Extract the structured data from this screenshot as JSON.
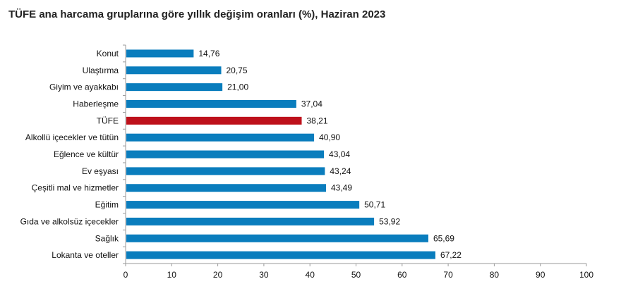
{
  "chart_data": {
    "type": "bar",
    "orientation": "horizontal",
    "title": "TÜFE ana harcama gruplarına göre yıllık değişim oranları (%), Haziran 2023",
    "categories": [
      "Konut",
      "Ulaştırma",
      "Giyim ve ayakkabı",
      "Haberleşme",
      "TÜFE",
      "Alkollü içecekler ve tütün",
      "Eğlence ve kültür",
      "Ev eşyası",
      "Çeşitli mal ve hizmetler",
      "Eğitim",
      "Gıda ve alkolsüz içecekler",
      "Sağlık",
      "Lokanta ve oteller"
    ],
    "values": [
      14.76,
      20.75,
      21.0,
      37.04,
      38.21,
      40.9,
      43.04,
      43.24,
      43.49,
      50.71,
      53.92,
      65.69,
      67.22
    ],
    "data_labels": [
      "14,76",
      "20,75",
      "21,00",
      "37,04",
      "38,21",
      "40,90",
      "43,04",
      "43,24",
      "43,49",
      "50,71",
      "53,92",
      "65,69",
      "67,22"
    ],
    "highlight": "TÜFE",
    "xlim": [
      0,
      100
    ],
    "xticks": [
      "0",
      "10",
      "20",
      "30",
      "40",
      "50",
      "60",
      "70",
      "80",
      "90",
      "100"
    ],
    "colors": {
      "default": "#0a7dbd",
      "highlight": "#be111b"
    }
  }
}
